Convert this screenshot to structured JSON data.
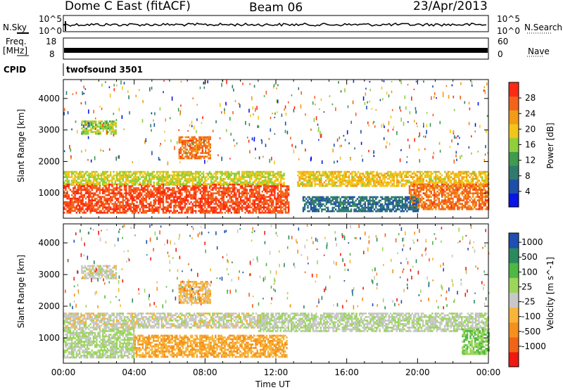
{
  "header": {
    "station": "Dome C East (fitACF)",
    "beam": "Beam 06",
    "date": "23/Apr/2013"
  },
  "param_panels": {
    "nsky_label": "N.Sky",
    "nsky_top": "10^5",
    "nsky_bottom": "10^0",
    "nsearch_label": "N.Search",
    "nsearch_top": "10^5",
    "nsearch_bottom": "10^0",
    "freq_label_1": "Freq.",
    "freq_label_2": "[MHz]",
    "freq_top": "18",
    "freq_bottom": "8",
    "nave_label": "Nave",
    "nave_top": "60",
    "nave_bottom": "0",
    "cpid_label": "CPID",
    "cpid_value": "twofsound 3501"
  },
  "colors": {
    "power": [
      "#0a14e6",
      "#1e4fa8",
      "#2f7a6e",
      "#3f9b4e",
      "#8fcf3a",
      "#f3c51a",
      "#f39b16",
      "#f3641a",
      "#ff2a12"
    ],
    "velocity": [
      "#f01a10",
      "#f06418",
      "#f6901c",
      "#f7b53a",
      "#c8c8c8",
      "#9bd65a",
      "#4fb845",
      "#2a8a5e",
      "#1f4fb0"
    ]
  },
  "chart_data": [
    {
      "type": "heatmap",
      "ylabel": "Slant Range [km]",
      "y_ticks": [
        "1000",
        "2000",
        "3000",
        "4000"
      ],
      "ylim": [
        200,
        4600
      ],
      "xlim": [
        0,
        24
      ],
      "colorbar": {
        "label": "Power [dB]",
        "ticks": [
          "4",
          "8",
          "12",
          "16",
          "20",
          "24",
          "28"
        ],
        "range": [
          0,
          32
        ]
      },
      "regions": [
        {
          "x": [
            0,
            12.7
          ],
          "y": [
            400,
            1300
          ],
          "value": 28
        },
        {
          "x": [
            0,
            12.5
          ],
          "y": [
            1300,
            1700
          ],
          "value": 18
        },
        {
          "x": [
            13.2,
            24
          ],
          "y": [
            1200,
            1700
          ],
          "value": 20
        },
        {
          "x": [
            19.5,
            24
          ],
          "y": [
            500,
            1300
          ],
          "value": 26
        },
        {
          "x": [
            6.5,
            8.3
          ],
          "y": [
            2100,
            2800
          ],
          "value": 26
        },
        {
          "x": [
            1,
            3
          ],
          "y": [
            2900,
            3300
          ],
          "value": 16
        },
        {
          "x": [
            13.5,
            20
          ],
          "y": [
            400,
            900
          ],
          "value": 8
        }
      ]
    },
    {
      "type": "heatmap",
      "ylabel": "Slant Range [km]",
      "y_ticks": [
        "1000",
        "2000",
        "3000",
        "4000"
      ],
      "ylim": [
        200,
        4600
      ],
      "xlim": [
        0,
        24
      ],
      "xlabel": "Time UT",
      "x_ticks": [
        "00:00",
        "04:00",
        "08:00",
        "12:00",
        "16:00",
        "20:00",
        "00:00"
      ],
      "colorbar": {
        "label": "Velocity [m s^-1]",
        "ticks": [
          "1000",
          "500",
          "100",
          "25",
          "-25",
          "-100",
          "-500",
          "-1000"
        ],
        "range": [
          -1000,
          1000
        ]
      },
      "regions": [
        {
          "x": [
            0,
            4
          ],
          "y": [
            400,
            1300
          ],
          "value": 150
        },
        {
          "x": [
            4,
            12.6
          ],
          "y": [
            400,
            1100
          ],
          "value": -300
        },
        {
          "x": [
            0,
            11.5
          ],
          "y": [
            1300,
            1800
          ],
          "value": 0
        },
        {
          "x": [
            11,
            24
          ],
          "y": [
            1200,
            1800
          ],
          "value": 80
        },
        {
          "x": [
            6.5,
            8.3
          ],
          "y": [
            2100,
            2800
          ],
          "value": -200
        },
        {
          "x": [
            1,
            3
          ],
          "y": [
            2900,
            3300
          ],
          "value": 0
        },
        {
          "x": [
            22.5,
            24
          ],
          "y": [
            500,
            1300
          ],
          "value": 300
        }
      ]
    }
  ]
}
